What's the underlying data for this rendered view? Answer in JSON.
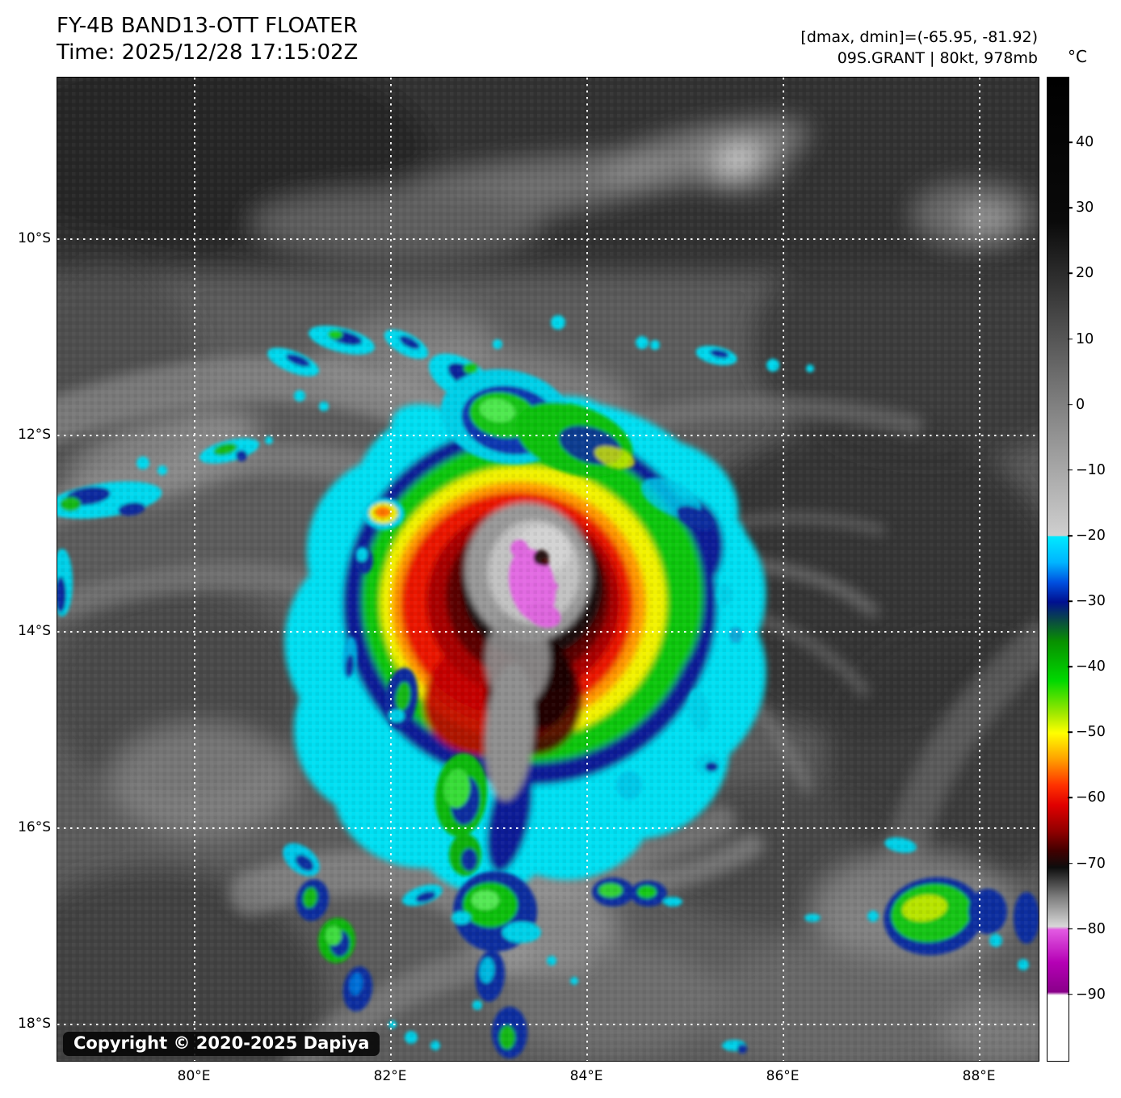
{
  "header": {
    "title": "FY-4B BAND13-OTT FLOATER",
    "time_line": "Time: 2025/12/28 17:15:02Z",
    "dminmax_line": "[dmax, dmin]=(-65.95, -81.92)",
    "storm_line": "09S.GRANT | 80kt, 978mb"
  },
  "storm": {
    "id": "09S",
    "name": "GRANT",
    "intensity": "80kt",
    "pressure": "978mb",
    "dmax_c": -65.95,
    "dmin_c": -81.92
  },
  "map": {
    "satellite": "FY-4B",
    "band": "BAND13-OTT",
    "product": "FLOATER",
    "grid_color": "#ffffff",
    "lat_axis": {
      "top_value": 8.35,
      "bottom_value": 18.37,
      "ticks": [
        {
          "value": 10,
          "label": "10°S"
        },
        {
          "value": 12,
          "label": "12°S"
        },
        {
          "value": 14,
          "label": "14°S"
        },
        {
          "value": 16,
          "label": "16°S"
        },
        {
          "value": 18,
          "label": "18°S"
        }
      ]
    },
    "lon_axis": {
      "left_value": 78.6,
      "right_value": 88.6,
      "ticks": [
        {
          "value": 80,
          "label": "80°E"
        },
        {
          "value": 82,
          "label": "82°E"
        },
        {
          "value": 84,
          "label": "84°E"
        },
        {
          "value": 86,
          "label": "86°E"
        },
        {
          "value": 88,
          "label": "88°E"
        }
      ]
    }
  },
  "colorbar": {
    "unit": "°C",
    "top_value": 50,
    "bottom_value": -100,
    "ticks": [
      {
        "value": 40,
        "label": "40"
      },
      {
        "value": 30,
        "label": "30"
      },
      {
        "value": 20,
        "label": "20"
      },
      {
        "value": 10,
        "label": "10"
      },
      {
        "value": 0,
        "label": "0"
      },
      {
        "value": -10,
        "label": "−10"
      },
      {
        "value": -20,
        "label": "−20"
      },
      {
        "value": -30,
        "label": "−30"
      },
      {
        "value": -40,
        "label": "−40"
      },
      {
        "value": -50,
        "label": "−50"
      },
      {
        "value": -60,
        "label": "−60"
      },
      {
        "value": -70,
        "label": "−70"
      },
      {
        "value": -80,
        "label": "−80"
      },
      {
        "value": -90,
        "label": "−90"
      }
    ],
    "stops": [
      [
        50,
        "#000000"
      ],
      [
        28,
        "#0a0a0a"
      ],
      [
        0,
        "#808080"
      ],
      [
        -19.9,
        "#cfcfcf"
      ],
      [
        -20,
        "#00eaff"
      ],
      [
        -24,
        "#00b4ff"
      ],
      [
        -27,
        "#0050e0"
      ],
      [
        -30,
        "#001090"
      ],
      [
        -33,
        "#0a4d40"
      ],
      [
        -36,
        "#089000"
      ],
      [
        -42,
        "#00d800"
      ],
      [
        -47,
        "#a0e800"
      ],
      [
        -50,
        "#ffff00"
      ],
      [
        -54,
        "#ffa000"
      ],
      [
        -58,
        "#ff3000"
      ],
      [
        -61,
        "#e00000"
      ],
      [
        -65,
        "#900000"
      ],
      [
        -68,
        "#400000"
      ],
      [
        -70.5,
        "#0d0d0d"
      ],
      [
        -75,
        "#7d7d7d"
      ],
      [
        -79.5,
        "#d8d8d8"
      ],
      [
        -80,
        "#e25ae2"
      ],
      [
        -85,
        "#b500b5"
      ],
      [
        -89.5,
        "#8a008a"
      ],
      [
        -90,
        "#ffffff"
      ],
      [
        -100,
        "#ffffff"
      ]
    ]
  },
  "footer": {
    "copyright": "Copyright © 2020-2025 Dapiya"
  }
}
